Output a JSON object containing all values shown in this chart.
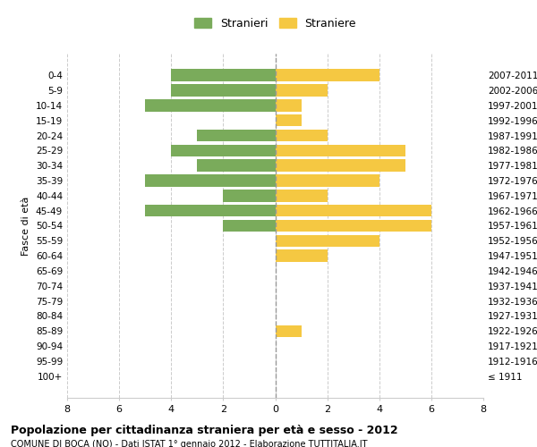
{
  "age_groups": [
    "100+",
    "95-99",
    "90-94",
    "85-89",
    "80-84",
    "75-79",
    "70-74",
    "65-69",
    "60-64",
    "55-59",
    "50-54",
    "45-49",
    "40-44",
    "35-39",
    "30-34",
    "25-29",
    "20-24",
    "15-19",
    "10-14",
    "5-9",
    "0-4"
  ],
  "birth_years": [
    "≤ 1911",
    "1912-1916",
    "1917-1921",
    "1922-1926",
    "1927-1931",
    "1932-1936",
    "1937-1941",
    "1942-1946",
    "1947-1951",
    "1952-1956",
    "1957-1961",
    "1962-1966",
    "1967-1971",
    "1972-1976",
    "1977-1981",
    "1982-1986",
    "1987-1991",
    "1992-1996",
    "1997-2001",
    "2002-2006",
    "2007-2011"
  ],
  "males": [
    0,
    0,
    0,
    0,
    0,
    0,
    0,
    0,
    0,
    0,
    2,
    5,
    2,
    5,
    3,
    4,
    3,
    0,
    5,
    4,
    4
  ],
  "females": [
    0,
    0,
    0,
    1,
    0,
    0,
    0,
    0,
    2,
    4,
    6,
    6,
    2,
    4,
    5,
    5,
    2,
    1,
    1,
    2,
    4
  ],
  "male_color": "#7aab5b",
  "female_color": "#f5c842",
  "title": "Popolazione per cittadinanza straniera per età e sesso - 2012",
  "subtitle": "COMUNE DI BOCA (NO) - Dati ISTAT 1° gennaio 2012 - Elaborazione TUTTITALIA.IT",
  "ylabel_left": "Fasce di età",
  "legend_male": "Stranieri",
  "legend_female": "Straniere",
  "xlim": 8,
  "background_color": "#ffffff",
  "grid_color": "#cccccc",
  "bar_height": 0.8
}
